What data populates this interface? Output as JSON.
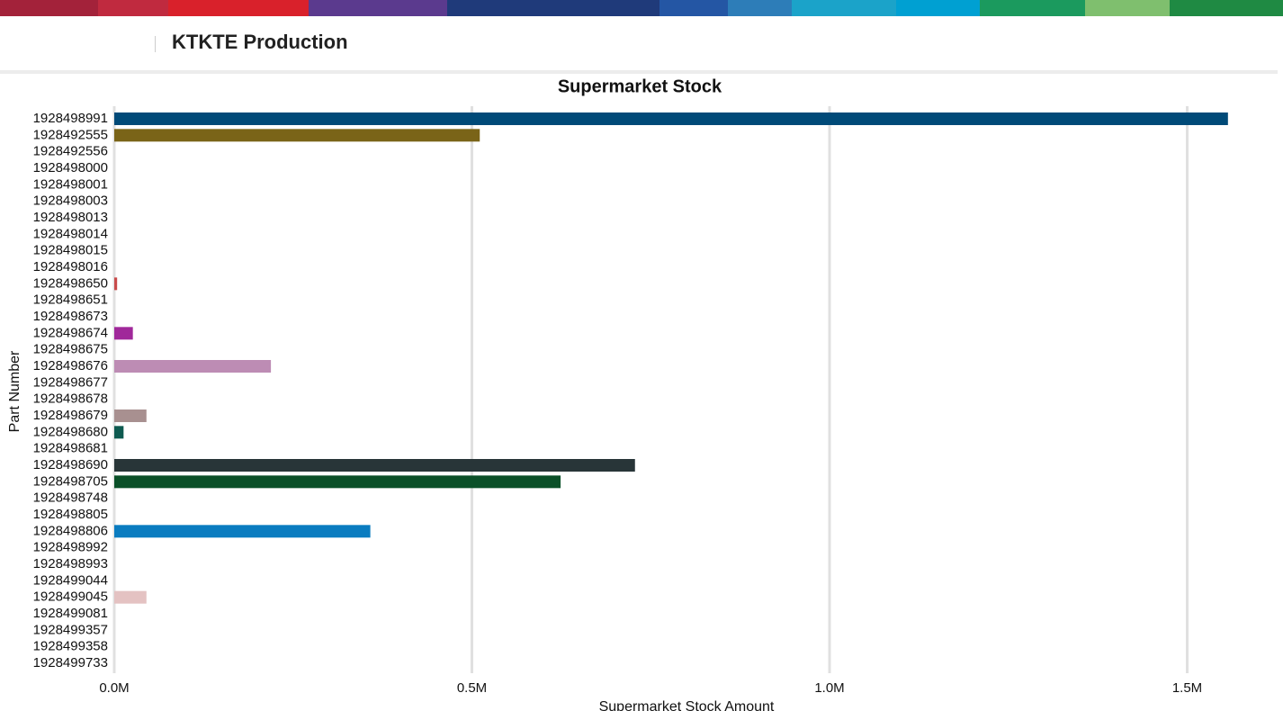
{
  "header": {
    "title": "KTKTE Production"
  },
  "chart_data": {
    "type": "hbar",
    "title": "Supermarket Stock",
    "x_label": "Supermarket Stock Amount",
    "y_label": "Part Number",
    "categories": [
      "1928498991",
      "1928492555",
      "1928492556",
      "1928498000",
      "1928498001",
      "1928498003",
      "1928498013",
      "1928498014",
      "1928498015",
      "1928498016",
      "1928498650",
      "1928498651",
      "1928498673",
      "1928498674",
      "1928498675",
      "1928498676",
      "1928498677",
      "1928498678",
      "1928498679",
      "1928498680",
      "1928498681",
      "1928498690",
      "1928498705",
      "1928498748",
      "1928498805",
      "1928498806",
      "1928498992",
      "1928498993",
      "1928499044",
      "1928499045",
      "1928499081",
      "1928499357",
      "1928499358",
      "1928499733"
    ],
    "values": [
      1557000,
      511000,
      0,
      0,
      0,
      0,
      0,
      0,
      0,
      0,
      4000,
      0,
      0,
      26000,
      0,
      219000,
      0,
      0,
      45000,
      13000,
      0,
      728000,
      624000,
      0,
      0,
      358000,
      0,
      0,
      0,
      45000,
      0,
      0,
      0,
      0
    ],
    "colors": [
      "#004a78",
      "#7a6418",
      null,
      null,
      null,
      null,
      null,
      null,
      null,
      null,
      "#c84b4b",
      null,
      null,
      "#a0289a",
      null,
      "#bd8cb4",
      null,
      null,
      "#a89090",
      "#0e5a50",
      null,
      "#283538",
      "#0a5028",
      null,
      null,
      "#0a7cc0",
      null,
      null,
      null,
      "#e4c2c2",
      null,
      null,
      null,
      null
    ],
    "xlim": [
      0,
      1600000
    ],
    "xticks": [
      {
        "value": 0,
        "label": "0.0M"
      },
      {
        "value": 500000,
        "label": "0.5M"
      },
      {
        "value": 1000000,
        "label": "1.0M"
      },
      {
        "value": 1500000,
        "label": "1.5M"
      }
    ],
    "grid": true
  }
}
